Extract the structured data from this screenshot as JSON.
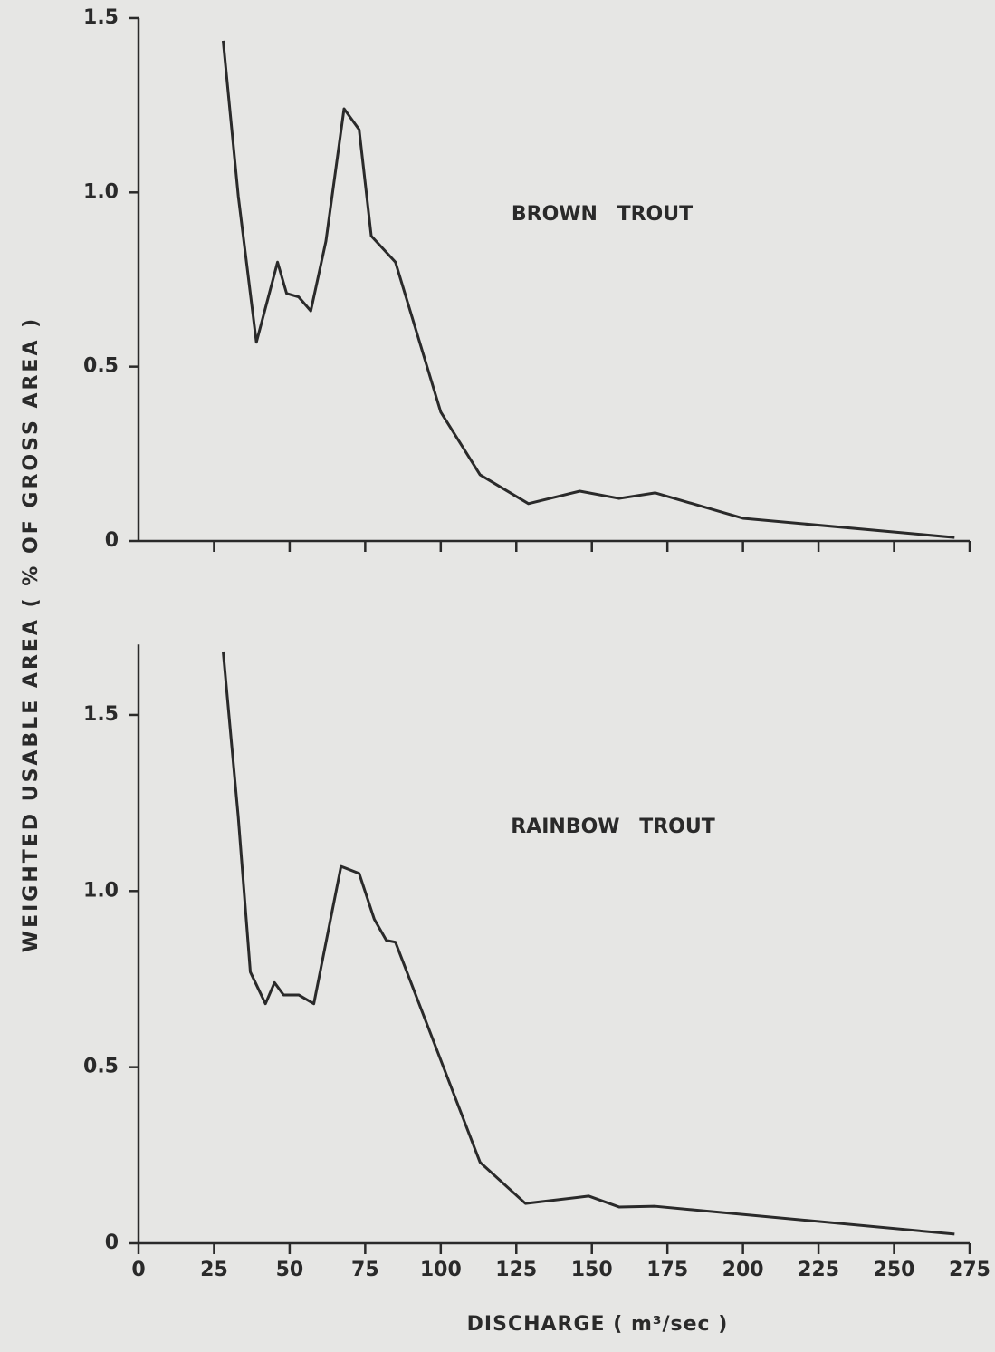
{
  "ylabel": "WEIGHTED USABLE AREA ( % OF GROSS AREA )",
  "xlabel": "DISCHARGE ( m³/sec )",
  "chart_data": [
    {
      "type": "line",
      "xlim": [
        0,
        275
      ],
      "xticks": [
        25,
        50,
        75,
        100,
        125,
        150,
        175,
        200,
        225,
        250,
        275
      ],
      "show_xtick_labels": false,
      "ylim": [
        0,
        1.5
      ],
      "yticks": [
        0,
        0.5,
        {
          "value": 1,
          "label": "1.0"
        },
        1.5
      ],
      "x": [
        28,
        33,
        39,
        46,
        49,
        53,
        57,
        62,
        68,
        73,
        77,
        85,
        100,
        113,
        129,
        146,
        159,
        171,
        200,
        270
      ],
      "series": [
        {
          "name": "BROWN TROUT",
          "color": "#2a2a2a",
          "values": [
            1.435,
            0.99,
            0.57,
            0.8,
            0.71,
            0.7,
            0.66,
            0.86,
            1.24,
            1.18,
            0.875,
            0.8,
            0.37,
            0.19,
            0.107,
            0.143,
            0.122,
            0.138,
            0.065,
            0.01
          ]
        }
      ]
    },
    {
      "type": "line",
      "xlim": [
        0,
        275
      ],
      "xticks": [
        0,
        25,
        50,
        75,
        100,
        125,
        150,
        175,
        200,
        225,
        250,
        275
      ],
      "show_xtick_labels": true,
      "ylim": [
        0,
        1.7
      ],
      "yticks": [
        0,
        0.5,
        {
          "value": 1,
          "label": "1.0"
        },
        1.5
      ],
      "x": [
        28,
        33,
        37,
        42,
        45,
        48,
        53,
        58,
        67,
        73,
        78,
        82,
        85,
        113,
        128,
        149,
        159,
        171,
        270
      ],
      "series": [
        {
          "name": "RAINBOW TROUT",
          "color": "#2a2a2a",
          "values": [
            1.68,
            1.21,
            0.77,
            0.68,
            0.74,
            0.705,
            0.705,
            0.68,
            1.07,
            1.05,
            0.92,
            0.86,
            0.855,
            0.23,
            0.113,
            0.134,
            0.103,
            0.105,
            0.026
          ]
        }
      ]
    }
  ]
}
